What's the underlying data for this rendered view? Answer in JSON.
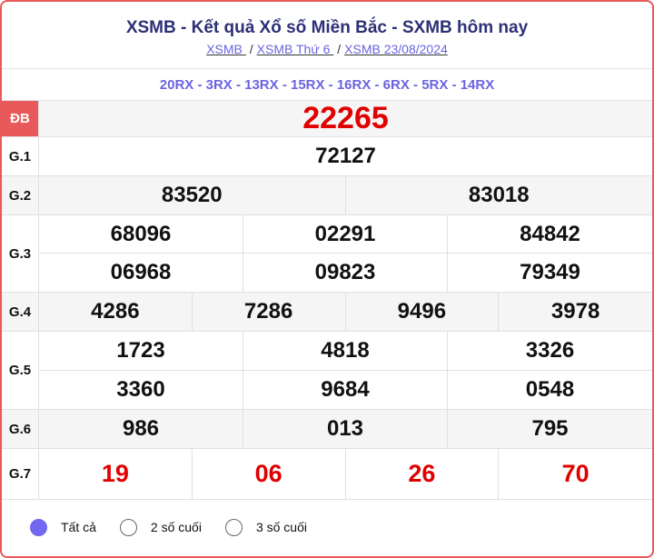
{
  "header": {
    "title": "XSMB - Kết quả Xổ số Miền Bắc - SXMB hôm nay",
    "breadcrumbs": [
      "XSMB ",
      "XSMB Thứ 6 ",
      "XSMB 23/08/2024"
    ]
  },
  "codes": "20RX - 3RX - 13RX - 15RX - 16RX - 6RX - 5RX - 14RX",
  "prizes": {
    "db": {
      "label": "ĐB",
      "values": [
        "22265"
      ]
    },
    "g1": {
      "label": "G.1",
      "values": [
        "72127"
      ]
    },
    "g2": {
      "label": "G.2",
      "values": [
        "83520",
        "83018"
      ]
    },
    "g3": {
      "label": "G.3",
      "values": [
        "68096",
        "02291",
        "84842",
        "06968",
        "09823",
        "79349"
      ]
    },
    "g4": {
      "label": "G.4",
      "values": [
        "4286",
        "7286",
        "9496",
        "3978"
      ]
    },
    "g5": {
      "label": "G.5",
      "values": [
        "1723",
        "4818",
        "3326",
        "3360",
        "9684",
        "0548"
      ]
    },
    "g6": {
      "label": "G.6",
      "values": [
        "986",
        "013",
        "795"
      ]
    },
    "g7": {
      "label": "G.7",
      "values": [
        "19",
        "06",
        "26",
        "70"
      ]
    }
  },
  "filter": {
    "options": [
      "Tất cả",
      "2 số cuối",
      "3 số cuối"
    ],
    "selected": 0
  },
  "colors": {
    "accent": "#6a64e0",
    "special": "#e00000",
    "border": "#e85a5a"
  }
}
